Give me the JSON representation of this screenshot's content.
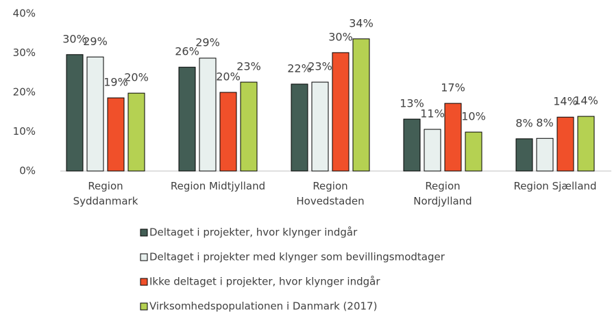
{
  "chart_data": {
    "type": "bar",
    "categories": [
      "Region\nSyddanmark",
      "Region Midtjylland",
      "Region\nHovedstaden",
      "Region\nNordjylland",
      "Region Sjælland"
    ],
    "ylim": [
      0,
      40
    ],
    "yticks": [
      {
        "value": 0,
        "label": "0%"
      },
      {
        "value": 10,
        "label": "10%"
      },
      {
        "value": 20,
        "label": "20%"
      },
      {
        "value": 30,
        "label": "30%"
      },
      {
        "value": 40,
        "label": "40%"
      }
    ],
    "grid": false,
    "legend": "bottom",
    "series": [
      {
        "name": "Deltaget i projekter, hvor klynger indgår",
        "color": "#435e55",
        "values": [
          29.6,
          26.4,
          22.1,
          13.2,
          8.2
        ],
        "value_labels": [
          "30%",
          "26%",
          "22%",
          "13%",
          "8%"
        ]
      },
      {
        "name": "Deltaget i projekter med klynger som bevillingsmodtager",
        "color": "#e8f0ee",
        "values": [
          29.0,
          28.7,
          22.6,
          10.6,
          8.3
        ],
        "value_labels": [
          "29%",
          "29%",
          "23%",
          "11%",
          "8%"
        ]
      },
      {
        "name": "Ikke deltaget i projekter, hvor klynger indgår",
        "color": "#f0502a",
        "values": [
          18.6,
          20.0,
          30.1,
          17.2,
          13.7
        ],
        "value_labels": [
          "19%",
          "20%",
          "30%",
          "17%",
          "14%"
        ]
      },
      {
        "name": "Virksomhedspopulationen i Danmark (2017)",
        "color": "#b5d152",
        "values": [
          19.8,
          22.6,
          33.6,
          9.9,
          13.9
        ],
        "value_labels": [
          "20%",
          "23%",
          "34%",
          "10%",
          "14%"
        ]
      }
    ]
  }
}
